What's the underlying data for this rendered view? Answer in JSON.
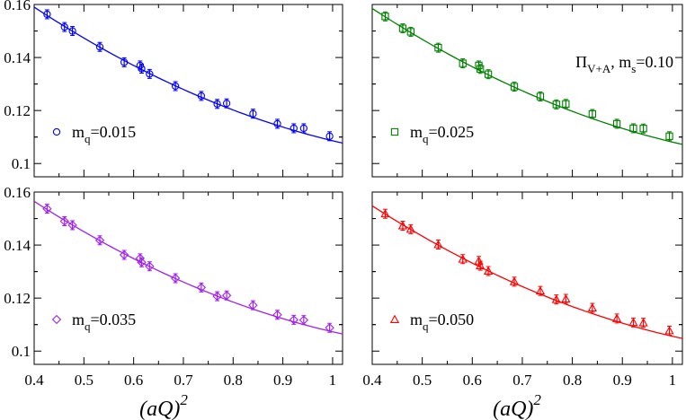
{
  "figure": {
    "xlabel": "(aQ)",
    "xlabel_exponent": "2"
  },
  "chart_data": [
    {
      "type": "scatter",
      "name": "panel-mq-0-015",
      "color": "#0000ff",
      "marker": "circle",
      "legend": {
        "main": "m",
        "sub": "q",
        "rest": "=0.015"
      },
      "annotation": null,
      "xlim": [
        0.4,
        1.02
      ],
      "ylim": [
        0.095,
        0.16
      ],
      "x_ticks": [
        0.4,
        0.5,
        0.6,
        0.7,
        0.8,
        0.9,
        1.0
      ],
      "x_tick_labels": [
        "0.4",
        "0.5",
        "0.6",
        "0.7",
        "0.8",
        "0.9",
        "1"
      ],
      "show_x_tick_labels": false,
      "y_ticks": [
        0.1,
        0.12,
        0.14,
        0.16
      ],
      "y_tick_labels": [
        "0.1",
        "0.12",
        "0.14",
        "0.16"
      ],
      "show_y_tick_labels": true,
      "points": [
        {
          "x": 0.426,
          "y": 0.1563
        },
        {
          "x": 0.461,
          "y": 0.1515
        },
        {
          "x": 0.477,
          "y": 0.15
        },
        {
          "x": 0.532,
          "y": 0.144
        },
        {
          "x": 0.581,
          "y": 0.1382
        },
        {
          "x": 0.613,
          "y": 0.137
        },
        {
          "x": 0.616,
          "y": 0.1358
        },
        {
          "x": 0.632,
          "y": 0.1338
        },
        {
          "x": 0.684,
          "y": 0.1292
        },
        {
          "x": 0.736,
          "y": 0.1255
        },
        {
          "x": 0.768,
          "y": 0.1225
        },
        {
          "x": 0.787,
          "y": 0.1227
        },
        {
          "x": 0.84,
          "y": 0.1188
        },
        {
          "x": 0.889,
          "y": 0.115
        },
        {
          "x": 0.922,
          "y": 0.1133
        },
        {
          "x": 0.942,
          "y": 0.1133
        },
        {
          "x": 0.994,
          "y": 0.1103
        }
      ],
      "fit_curve": {
        "x0": 0.4,
        "y0": 0.159,
        "slope": -0.123,
        "curvature": 0.065,
        "x_end": 1.02
      }
    },
    {
      "type": "scatter",
      "name": "panel-mq-0-025",
      "color": "#008000",
      "marker": "square",
      "legend": {
        "main": "m",
        "sub": "q",
        "rest": "=0.025"
      },
      "annotation": {
        "main": "Π",
        "sub1": "V+A",
        "mid": ", m",
        "sub2": "s",
        "rest": "=0.10"
      },
      "xlim": [
        0.4,
        1.02
      ],
      "ylim": [
        0.095,
        0.16
      ],
      "x_ticks": [
        0.4,
        0.5,
        0.6,
        0.7,
        0.8,
        0.9,
        1.0
      ],
      "x_tick_labels": [
        "0.4",
        "0.5",
        "0.6",
        "0.7",
        "0.8",
        "0.9",
        "1"
      ],
      "show_x_tick_labels": false,
      "y_ticks": [
        0.1,
        0.12,
        0.14,
        0.16
      ],
      "y_tick_labels": [
        "0.1",
        "0.12",
        "0.14",
        "0.16"
      ],
      "show_y_tick_labels": false,
      "points": [
        {
          "x": 0.426,
          "y": 0.1555
        },
        {
          "x": 0.461,
          "y": 0.151
        },
        {
          "x": 0.477,
          "y": 0.1497
        },
        {
          "x": 0.532,
          "y": 0.1437
        },
        {
          "x": 0.581,
          "y": 0.1378
        },
        {
          "x": 0.613,
          "y": 0.137
        },
        {
          "x": 0.616,
          "y": 0.1357
        },
        {
          "x": 0.632,
          "y": 0.1337
        },
        {
          "x": 0.684,
          "y": 0.129
        },
        {
          "x": 0.736,
          "y": 0.1253
        },
        {
          "x": 0.768,
          "y": 0.1223
        },
        {
          "x": 0.787,
          "y": 0.1225
        },
        {
          "x": 0.84,
          "y": 0.1187
        },
        {
          "x": 0.889,
          "y": 0.115
        },
        {
          "x": 0.922,
          "y": 0.1133
        },
        {
          "x": 0.942,
          "y": 0.1132
        },
        {
          "x": 0.994,
          "y": 0.1103
        }
      ],
      "fit_curve": {
        "x0": 0.4,
        "y0": 0.1585,
        "slope": -0.123,
        "curvature": 0.065,
        "x_end": 1.02
      }
    },
    {
      "type": "scatter",
      "name": "panel-mq-0-035",
      "color": "#a020f0",
      "marker": "diamond",
      "legend": {
        "main": "m",
        "sub": "q",
        "rest": "=0.035"
      },
      "annotation": null,
      "xlim": [
        0.4,
        1.02
      ],
      "ylim": [
        0.095,
        0.16
      ],
      "x_ticks": [
        0.4,
        0.5,
        0.6,
        0.7,
        0.8,
        0.9,
        1.0
      ],
      "x_tick_labels": [
        "0.4",
        "0.5",
        "0.6",
        "0.7",
        "0.8",
        "0.9",
        "1"
      ],
      "show_x_tick_labels": true,
      "y_ticks": [
        0.1,
        0.12,
        0.14,
        0.16
      ],
      "y_tick_labels": [
        "0.1",
        "0.12",
        "0.14",
        "0.16"
      ],
      "show_y_tick_labels": true,
      "points": [
        {
          "x": 0.426,
          "y": 0.1537
        },
        {
          "x": 0.461,
          "y": 0.149
        },
        {
          "x": 0.477,
          "y": 0.1475
        },
        {
          "x": 0.532,
          "y": 0.1418
        },
        {
          "x": 0.581,
          "y": 0.1363
        },
        {
          "x": 0.613,
          "y": 0.135
        },
        {
          "x": 0.616,
          "y": 0.1335
        },
        {
          "x": 0.632,
          "y": 0.132
        },
        {
          "x": 0.684,
          "y": 0.1275
        },
        {
          "x": 0.736,
          "y": 0.124
        },
        {
          "x": 0.768,
          "y": 0.1207
        },
        {
          "x": 0.787,
          "y": 0.121
        },
        {
          "x": 0.84,
          "y": 0.1173
        },
        {
          "x": 0.889,
          "y": 0.1137
        },
        {
          "x": 0.922,
          "y": 0.1118
        },
        {
          "x": 0.942,
          "y": 0.1117
        },
        {
          "x": 0.994,
          "y": 0.1088
        }
      ],
      "fit_curve": {
        "x0": 0.4,
        "y0": 0.1565,
        "slope": -0.121,
        "curvature": 0.065,
        "x_end": 1.02
      }
    },
    {
      "type": "scatter",
      "name": "panel-mq-0-050",
      "color": "#ff0000",
      "marker": "triangle",
      "legend": {
        "main": "m",
        "sub": "q",
        "rest": "=0.050"
      },
      "annotation": null,
      "xlim": [
        0.4,
        1.02
      ],
      "ylim": [
        0.095,
        0.16
      ],
      "x_ticks": [
        0.4,
        0.5,
        0.6,
        0.7,
        0.8,
        0.9,
        1.0
      ],
      "x_tick_labels": [
        "0.4",
        "0.5",
        "0.6",
        "0.7",
        "0.8",
        "0.9",
        "1"
      ],
      "show_x_tick_labels": true,
      "y_ticks": [
        0.1,
        0.12,
        0.14,
        0.16
      ],
      "y_tick_labels": [
        "0.1",
        "0.12",
        "0.14",
        "0.16"
      ],
      "show_y_tick_labels": false,
      "points": [
        {
          "x": 0.426,
          "y": 0.1518
        },
        {
          "x": 0.461,
          "y": 0.1473
        },
        {
          "x": 0.477,
          "y": 0.146
        },
        {
          "x": 0.532,
          "y": 0.1402
        },
        {
          "x": 0.581,
          "y": 0.1347
        },
        {
          "x": 0.613,
          "y": 0.134
        },
        {
          "x": 0.616,
          "y": 0.1322
        },
        {
          "x": 0.632,
          "y": 0.1302
        },
        {
          "x": 0.684,
          "y": 0.1262
        },
        {
          "x": 0.736,
          "y": 0.1227
        },
        {
          "x": 0.768,
          "y": 0.1195
        },
        {
          "x": 0.787,
          "y": 0.1197
        },
        {
          "x": 0.84,
          "y": 0.1163
        },
        {
          "x": 0.889,
          "y": 0.1123
        },
        {
          "x": 0.922,
          "y": 0.1108
        },
        {
          "x": 0.942,
          "y": 0.1107
        },
        {
          "x": 0.994,
          "y": 0.1077
        }
      ],
      "fit_curve": {
        "x0": 0.4,
        "y0": 0.1548,
        "slope": -0.121,
        "curvature": 0.065,
        "x_end": 1.02
      }
    }
  ]
}
